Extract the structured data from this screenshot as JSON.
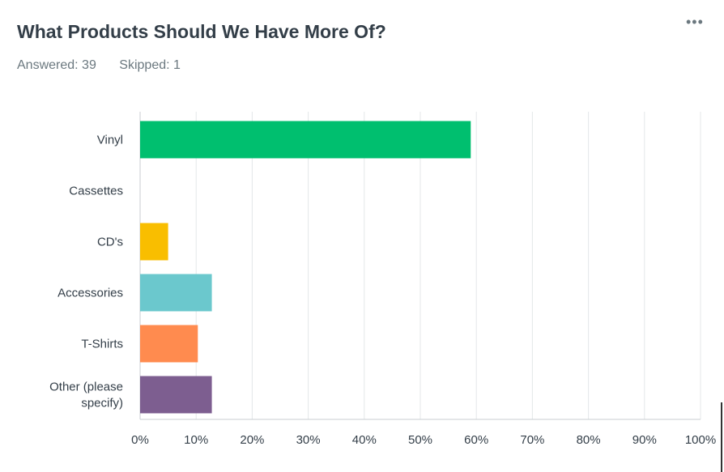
{
  "header": {
    "title": "What Products Should We Have More Of?",
    "answered": "Answered: 39",
    "skipped": "Skipped: 1",
    "menu_icon": "more-horizontal-icon",
    "menu_glyph": "•••"
  },
  "chart_data": {
    "type": "bar",
    "orientation": "horizontal",
    "categories": [
      [
        "Vinyl"
      ],
      [
        "Cassettes"
      ],
      [
        "CD's"
      ],
      [
        "Accessories"
      ],
      [
        "T-Shirts"
      ],
      [
        "Other (please",
        "specify)"
      ]
    ],
    "values": [
      59,
      0,
      5,
      12.8,
      10.3,
      12.8
    ],
    "colors": [
      "#00bf6f",
      "#00bf6f",
      "#f9be00",
      "#6bc8cd",
      "#ff8b4f",
      "#7d5e90"
    ],
    "xlim": [
      0,
      100
    ],
    "xticks": [
      "0%",
      "10%",
      "20%",
      "30%",
      "40%",
      "50%",
      "60%",
      "70%",
      "80%",
      "90%",
      "100%"
    ],
    "grid": true
  }
}
